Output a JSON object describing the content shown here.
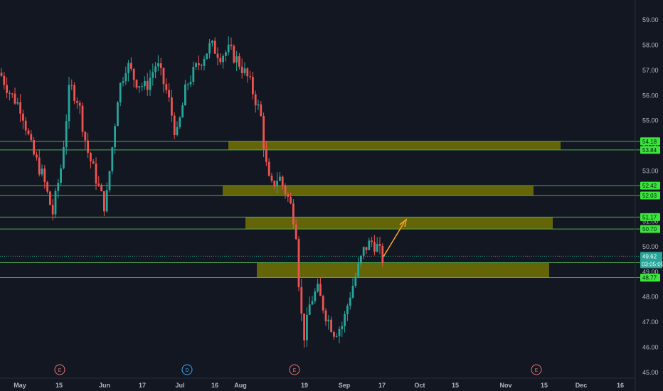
{
  "chart_data": {
    "type": "candlestick",
    "ylim": [
      44.9,
      59.6
    ],
    "y_ticks": [
      "59.00",
      "58.00",
      "57.00",
      "56.00",
      "55.00",
      "54.00",
      "53.00",
      "52.00",
      "51.00",
      "50.00",
      "49.00",
      "48.00",
      "47.00",
      "46.00",
      "45.00"
    ],
    "x_ticks": [
      "May",
      "15",
      "Jun",
      "17",
      "Jul",
      "16",
      "Aug",
      "19",
      "Sep",
      "17",
      "Oct",
      "15",
      "Nov",
      "15",
      "Dec",
      "16"
    ],
    "levels": [
      {
        "value": "54.18",
        "price": 54.18
      },
      {
        "value": "53.84",
        "price": 53.84
      },
      {
        "value": "52.42",
        "price": 52.42
      },
      {
        "value": "52.03",
        "price": 52.03
      },
      {
        "value": "51.17",
        "price": 51.17
      },
      {
        "value": "50.70",
        "price": 50.7
      },
      {
        "value": "49.36",
        "price": 49.36
      },
      {
        "value": "48.77",
        "price": 48.77
      }
    ],
    "zones": [
      {
        "top": 54.18,
        "bottom": 53.84
      },
      {
        "top": 52.42,
        "bottom": 52.03
      },
      {
        "top": 51.17,
        "bottom": 50.7
      },
      {
        "top": 49.36,
        "bottom": 48.77
      }
    ],
    "current_price": {
      "value": "49.62",
      "price": 49.62,
      "countdown": "03:05:05"
    },
    "events": [
      {
        "letter": "E",
        "type": "earnings"
      },
      {
        "letter": "D",
        "type": "dividend"
      },
      {
        "letter": "E",
        "type": "earnings"
      },
      {
        "letter": "E",
        "type": "earnings"
      }
    ],
    "grid": false,
    "colors": {
      "background": "#131722",
      "up": "#26a69a",
      "down": "#ef5350",
      "level_line": "#4caf50",
      "level_label": "#39e639",
      "zone": "#808000",
      "price_line": "#26a69a",
      "arrow": "#ffa726",
      "earnings": "#e57373",
      "dividend": "#42a5f5"
    }
  }
}
